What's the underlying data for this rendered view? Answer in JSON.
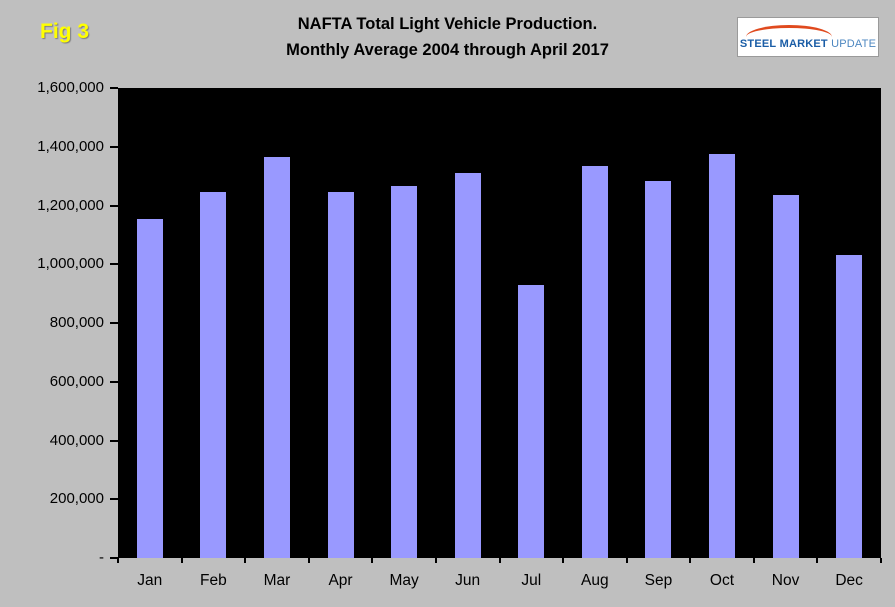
{
  "header": {
    "fig_label": "Fig 3",
    "title_line1": "NAFTA Total Light Vehicle Production.",
    "title_line2": "Monthly Average 2004 through April 2017",
    "logo": {
      "text_steel": "STEEL",
      "text_market": "MARKET",
      "text_update": "UPDATE"
    }
  },
  "chart_data": {
    "type": "bar",
    "title": "NAFTA Total Light Vehicle Production. Monthly Average 2004 through April 2017",
    "categories": [
      "Jan",
      "Feb",
      "Mar",
      "Apr",
      "May",
      "Jun",
      "Jul",
      "Aug",
      "Sep",
      "Oct",
      "Nov",
      "Dec"
    ],
    "values": [
      1155000,
      1245000,
      1365000,
      1245000,
      1265000,
      1310000,
      930000,
      1335000,
      1285000,
      1375000,
      1235000,
      1030000
    ],
    "xlabel": "",
    "ylabel": "",
    "ylim": [
      0,
      1600000
    ],
    "ytick_step": 200000,
    "ytick_labels": [
      "-",
      "200,000",
      "400,000",
      "600,000",
      "800,000",
      "1,000,000",
      "1,200,000",
      "1,400,000",
      "1,600,000"
    ],
    "bar_color": "#9999ff",
    "plot_background": "#000000",
    "page_background": "#bfbfbf",
    "grid": false,
    "legend_position": "none"
  }
}
